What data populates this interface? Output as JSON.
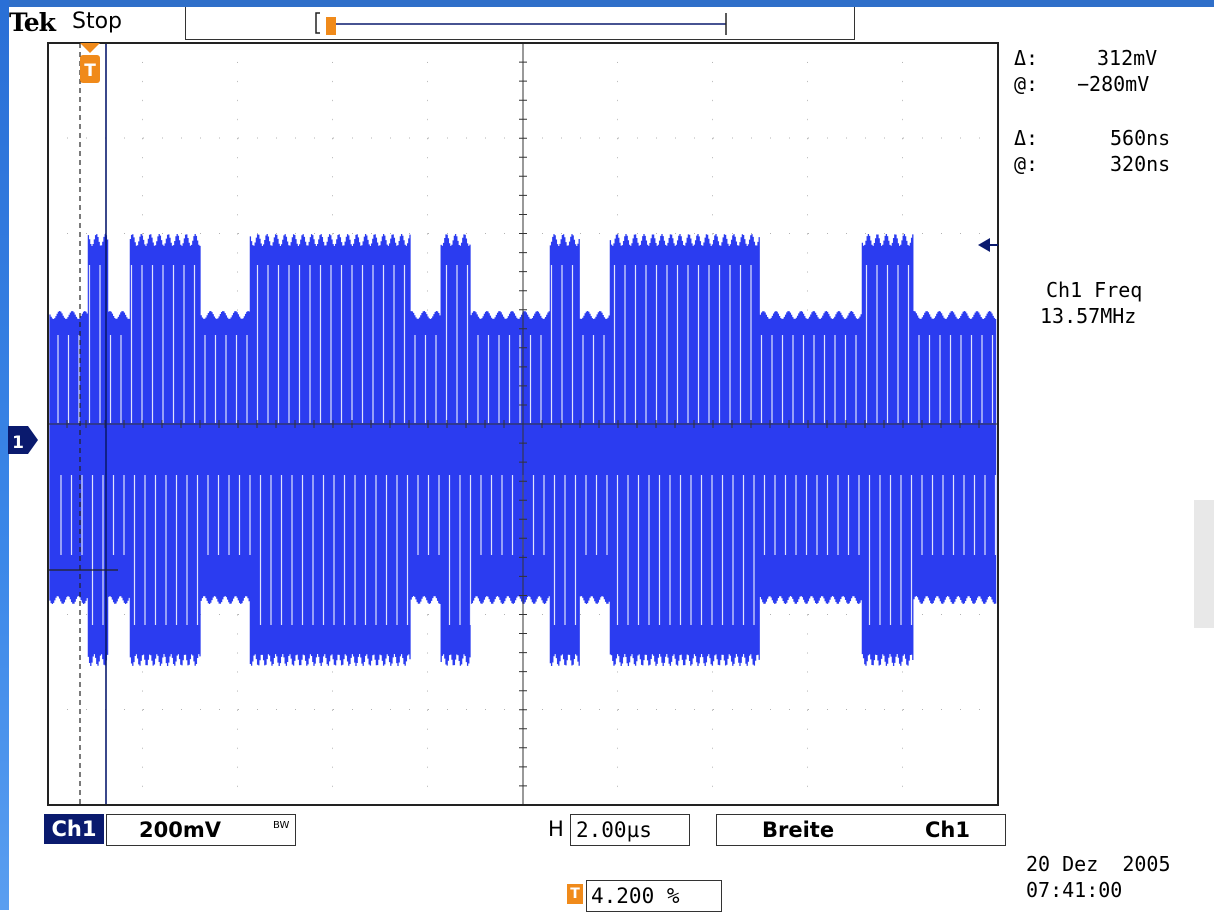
{
  "header": {
    "brand": "Tek",
    "status": "Stop"
  },
  "cursor_readouts": {
    "amp_delta_symbol": "Δ:",
    "amp_delta": "312mV",
    "amp_at_symbol": "@:",
    "amp_at": "−280mV",
    "time_delta_symbol": "Δ:",
    "time_delta": "560ns",
    "time_at_symbol": "@:",
    "time_at": "320ns"
  },
  "measurement": {
    "label": "Ch1 Freq",
    "value": "13.57MHz"
  },
  "bottom_bar": {
    "channel": "Ch1",
    "scale": "200mV",
    "bw_mark": "BW",
    "h_label": "H",
    "timebase": "2.00µs",
    "trigger_mode": "Breite",
    "trigger_source": "Ch1"
  },
  "trigger": {
    "icon_letter": "T",
    "position": "4.200 %"
  },
  "datetime": {
    "date": "20 Dez  2005",
    "time": "07:41:00"
  },
  "channel_marker": "1",
  "colors": {
    "trace": "#2b3cf0",
    "trigger_marker": "#f08a1a",
    "channel_chip": "#0a1a6e",
    "graticule": "#555555"
  }
}
